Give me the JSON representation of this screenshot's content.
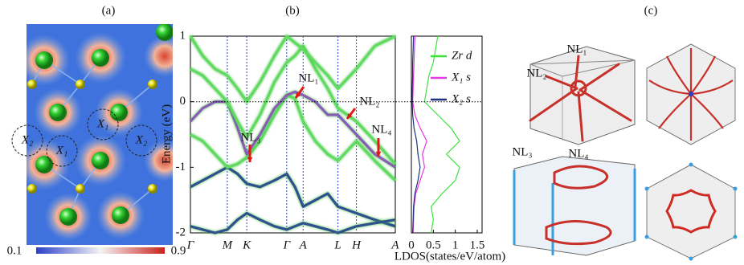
{
  "panel_labels": [
    "(a)",
    "(b)",
    "(c)"
  ],
  "panel_a": {
    "site_labels": [
      "X₂",
      "X₁",
      "X₁",
      "X₂"
    ],
    "colorbar_ticks": [
      0.1,
      0.9
    ]
  },
  "chart_data": [
    {
      "type": "line",
      "ylabel": "Energy (eV)",
      "x": [
        0,
        0.06,
        0.12,
        0.18,
        0.23,
        0.275,
        0.34,
        0.41,
        0.47,
        0.51,
        0.55,
        0.61,
        0.67,
        0.72,
        0.81,
        0.9,
        1
      ],
      "series": [
        {
          "color": "#2f4f8f",
          "values": [
            -1.3,
            -1.2,
            -1.1,
            -1.0,
            -1.1,
            -1.25,
            -1.3,
            -1.2,
            -1.1,
            -1.3,
            -1.6,
            -1.5,
            -1.4,
            -1.6,
            -1.7,
            -1.8,
            -1.9
          ]
        },
        {
          "color": "#5fdc5f",
          "values": [
            -0.5,
            -0.6,
            -0.8,
            -1.0,
            -0.95,
            -0.85,
            -0.6,
            -0.2,
            0.1,
            0.05,
            -0.3,
            -0.6,
            -0.8,
            -0.9,
            -0.6,
            -0.9,
            -1.2
          ]
        },
        {
          "color": "#8a5cb8",
          "values": [
            -0.3,
            -0.1,
            0.0,
            0.0,
            -0.4,
            -0.8,
            -0.5,
            -0.1,
            0.1,
            0.15,
            0.1,
            0.0,
            -0.2,
            -0.2,
            -0.5,
            -0.8,
            -1.0
          ]
        },
        {
          "color": "#5fdc5f",
          "values": [
            0.5,
            0.4,
            0.2,
            0.0,
            -0.3,
            -0.55,
            -0.2,
            0.3,
            0.6,
            0.7,
            0.85,
            0.5,
            0.2,
            -0.1,
            -0.3,
            -0.6,
            -0.95
          ]
        },
        {
          "color": "#5fdc5f",
          "values": [
            1.0,
            0.7,
            0.5,
            0.4,
            0.2,
            0.0,
            0.3,
            0.7,
            1.0,
            0.9,
            0.8,
            0.6,
            0.4,
            0.2,
            0.5,
            0.85,
            1.0
          ]
        },
        {
          "color": "#2f4f8f",
          "values": [
            -1.9,
            -1.95,
            -2.0,
            -1.95,
            -1.8,
            -1.7,
            -1.8,
            -1.9,
            -1.95,
            -1.9,
            -1.85,
            -1.9,
            -1.95,
            -2.0,
            -1.9,
            -1.85,
            -1.8
          ]
        }
      ],
      "xlim": [
        0,
        1
      ],
      "ylim": [
        -2,
        1
      ],
      "yticks": [
        -2,
        -1,
        0,
        1
      ],
      "xticks": [
        {
          "value": 0,
          "label": "Γ"
        },
        {
          "value": 0.18,
          "label": "M"
        },
        {
          "value": 0.275,
          "label": "K"
        },
        {
          "value": 0.47,
          "label": "Γ"
        },
        {
          "value": 0.55,
          "label": "A"
        },
        {
          "value": 0.72,
          "label": "L"
        },
        {
          "value": 0.81,
          "label": "H"
        },
        {
          "value": 1,
          "label": "A"
        }
      ],
      "grid": true,
      "grid_color": "#2a3fd0",
      "annotations": [
        "NL₁",
        "NL₂",
        "NL₃",
        "NL₄"
      ]
    },
    {
      "type": "line",
      "xlabel": "LDOS(states/eV/atom)",
      "y": [
        -2,
        -1.8,
        -1.6,
        -1.4,
        -1.2,
        -1,
        -0.8,
        -0.6,
        -0.4,
        -0.2,
        0,
        0.2,
        0.4,
        0.6,
        0.8,
        1
      ],
      "series": [
        {
          "name": "Zr d",
          "color": "#3ee03e",
          "values": [
            0.45,
            0.5,
            0.45,
            0.7,
            1.0,
            1.1,
            0.8,
            1.1,
            0.9,
            0.6,
            0.3,
            0.35,
            0.4,
            0.5,
            0.55,
            0.6
          ]
        },
        {
          "name": "X₁ s",
          "color": "#e23be2",
          "values": [
            0.04,
            0.05,
            0.06,
            0.1,
            0.2,
            0.3,
            0.25,
            0.35,
            0.2,
            0.08,
            0.03,
            0.04,
            0.05,
            0.06,
            0.07,
            0.08
          ]
        },
        {
          "name": "X₂ s",
          "color": "#1f2f7a",
          "values": [
            0.03,
            0.04,
            0.05,
            0.08,
            0.15,
            0.2,
            0.15,
            0.12,
            0.06,
            0.03,
            0.02,
            0.02,
            0.03,
            0.03,
            0.04,
            0.05
          ]
        }
      ],
      "xlim": [
        0,
        1.5
      ],
      "ylim": [
        -2,
        1
      ],
      "xticks": [
        0,
        0.5,
        1,
        1.5
      ]
    }
  ],
  "panel_c": {
    "labels": [
      "NL₁",
      "NL₂",
      "NL₃",
      "NL₄"
    ]
  }
}
